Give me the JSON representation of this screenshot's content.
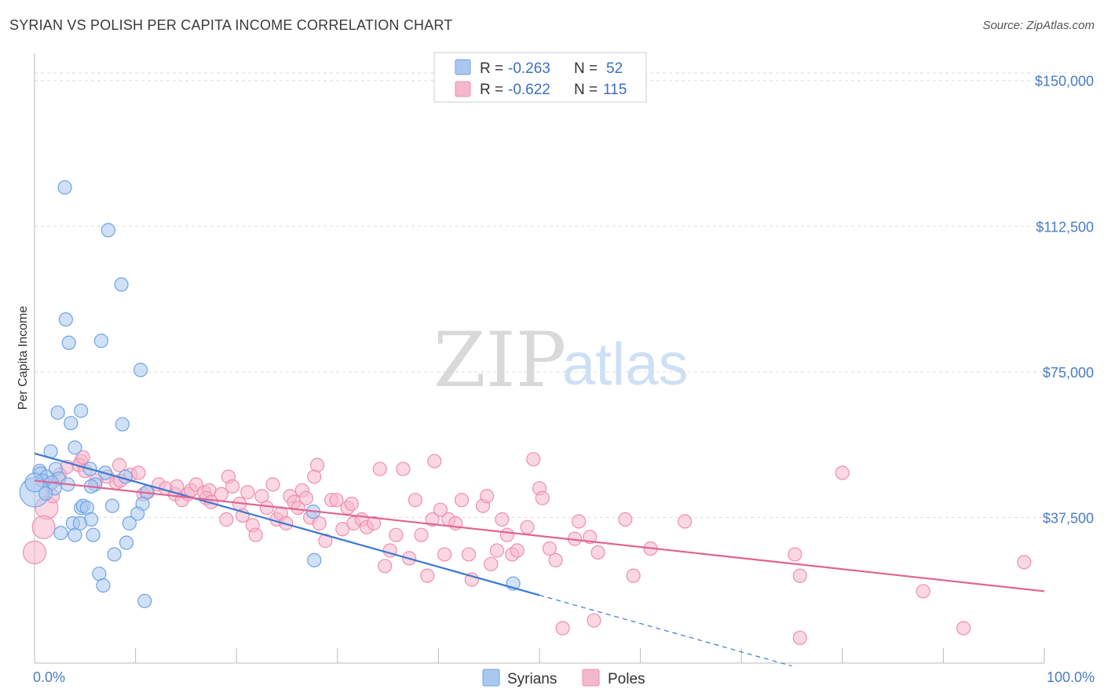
{
  "title": "SYRIAN VS POLISH PER CAPITA INCOME CORRELATION CHART",
  "source": "Source: ZipAtlas.com",
  "watermark": {
    "zip": "ZIP",
    "atlas": "atlas"
  },
  "legend": {
    "rows": [
      {
        "r_label": "R = ",
        "r_value": "-0.263",
        "n_label": "N = ",
        "n_value": "52",
        "color": "#a9c8ef"
      },
      {
        "r_label": "R = ",
        "r_value": "-0.622",
        "n_label": "N = ",
        "n_value": "115",
        "color": "#f5b7cb"
      }
    ]
  },
  "bottom_legend": [
    {
      "label": "Syrians",
      "color": "#a9c8ef"
    },
    {
      "label": "Poles",
      "color": "#f5b7cb"
    }
  ],
  "chart_data": {
    "type": "scatter",
    "title": "SYRIAN VS POLISH PER CAPITA INCOME CORRELATION CHART",
    "xlabel": "",
    "ylabel": "Per Capita Income",
    "xlim": [
      0,
      100
    ],
    "ylim": [
      0,
      155000
    ],
    "y_ticks": [
      {
        "value": 37500,
        "label": "$37,500"
      },
      {
        "value": 75000,
        "label": "$75,000"
      },
      {
        "value": 112500,
        "label": "$112,500"
      },
      {
        "value": 150000,
        "label": "$150,000"
      }
    ],
    "x_tick_labels": [
      {
        "value": 0,
        "label": "0.0%"
      },
      {
        "value": 100,
        "label": "100.0%"
      }
    ],
    "x_minor_ticks": [
      0,
      10,
      20,
      30,
      40,
      50,
      60,
      70,
      80,
      90,
      100
    ],
    "series": [
      {
        "name": "Syrians",
        "color": "#6fa3e6",
        "fill": "#a9c8ef",
        "line_color": "#3a78d4",
        "trend": {
          "x0": 0,
          "y0": 54000,
          "x1": 50,
          "y1": 17500,
          "dash_to_x": 75
        },
        "points": [
          [
            3.0,
            122500
          ],
          [
            7.3,
            111500
          ],
          [
            8.6,
            97500
          ],
          [
            3.1,
            88500
          ],
          [
            3.4,
            82500
          ],
          [
            6.6,
            83000
          ],
          [
            10.5,
            75500
          ],
          [
            2.3,
            64500
          ],
          [
            4.6,
            65000
          ],
          [
            8.7,
            61500
          ],
          [
            3.6,
            61800
          ],
          [
            4.0,
            55500
          ],
          [
            1.6,
            54500
          ],
          [
            0.5,
            49500
          ],
          [
            2.1,
            50000
          ],
          [
            5.5,
            50000
          ],
          [
            7.0,
            49000
          ],
          [
            0.6,
            48800
          ],
          [
            1.2,
            48000
          ],
          [
            2.4,
            47500
          ],
          [
            0.8,
            47000
          ],
          [
            1.7,
            46500
          ],
          [
            3.3,
            46000
          ],
          [
            6.0,
            46000
          ],
          [
            2.0,
            45000
          ],
          [
            5.6,
            45500
          ],
          [
            9.0,
            48000
          ],
          [
            0.0,
            44000
          ],
          [
            1.1,
            43700
          ],
          [
            11.1,
            44000
          ],
          [
            27.6,
            39000
          ],
          [
            4.6,
            40000
          ],
          [
            4.8,
            40500
          ],
          [
            5.2,
            40000
          ],
          [
            7.7,
            40500
          ],
          [
            10.7,
            41000
          ],
          [
            10.2,
            38500
          ],
          [
            5.6,
            37000
          ],
          [
            3.8,
            36000
          ],
          [
            4.5,
            36000
          ],
          [
            9.4,
            36000
          ],
          [
            2.6,
            33500
          ],
          [
            4.0,
            33000
          ],
          [
            5.8,
            33000
          ],
          [
            9.1,
            31000
          ],
          [
            7.9,
            28000
          ],
          [
            27.7,
            26500
          ],
          [
            6.4,
            23000
          ],
          [
            6.8,
            20000
          ],
          [
            47.4,
            20500
          ],
          [
            10.9,
            16000
          ],
          [
            0.0,
            46500
          ]
        ],
        "sizes": {
          "0": 1,
          "27": 2.2,
          "51": 1.4
        }
      },
      {
        "name": "Poles",
        "color": "#ef8fb0",
        "fill": "#f5b7cb",
        "line_color": "#e0648f",
        "trend": {
          "x0": 0,
          "y0": 47000,
          "x1": 100,
          "y1": 18500
        },
        "points": [
          [
            0.0,
            28500
          ],
          [
            1.2,
            40000
          ],
          [
            0.9,
            35000
          ],
          [
            1.8,
            43000
          ],
          [
            1.5,
            46000
          ],
          [
            2.5,
            48500
          ],
          [
            3.2,
            50500
          ],
          [
            4.6,
            52000
          ],
          [
            4.4,
            51000
          ],
          [
            6.1,
            47000
          ],
          [
            4.8,
            53000
          ],
          [
            5.0,
            49500
          ],
          [
            7.2,
            48000
          ],
          [
            8.1,
            46500
          ],
          [
            8.5,
            47000
          ],
          [
            8.4,
            51000
          ],
          [
            9.5,
            48500
          ],
          [
            10.3,
            49000
          ],
          [
            10.8,
            43500
          ],
          [
            11.2,
            44000
          ],
          [
            12.3,
            46000
          ],
          [
            13.0,
            45000
          ],
          [
            13.9,
            43500
          ],
          [
            14.1,
            45500
          ],
          [
            14.6,
            42000
          ],
          [
            15.2,
            43500
          ],
          [
            15.5,
            44500
          ],
          [
            16.0,
            46000
          ],
          [
            16.8,
            44000
          ],
          [
            17.3,
            44500
          ],
          [
            17.0,
            42500
          ],
          [
            17.5,
            41500
          ],
          [
            18.5,
            43500
          ],
          [
            19.0,
            37000
          ],
          [
            19.2,
            48000
          ],
          [
            19.6,
            45500
          ],
          [
            20.3,
            41000
          ],
          [
            20.6,
            38000
          ],
          [
            21.1,
            44000
          ],
          [
            21.6,
            35500
          ],
          [
            21.9,
            33000
          ],
          [
            22.5,
            43000
          ],
          [
            23.0,
            40000
          ],
          [
            23.6,
            46000
          ],
          [
            24.0,
            37000
          ],
          [
            24.4,
            38500
          ],
          [
            24.9,
            36000
          ],
          [
            25.3,
            43000
          ],
          [
            25.7,
            41500
          ],
          [
            26.1,
            40000
          ],
          [
            26.5,
            44500
          ],
          [
            26.9,
            42500
          ],
          [
            27.3,
            37500
          ],
          [
            27.7,
            48000
          ],
          [
            28.0,
            51000
          ],
          [
            28.2,
            36000
          ],
          [
            28.8,
            31500
          ],
          [
            29.4,
            42000
          ],
          [
            29.9,
            42000
          ],
          [
            30.5,
            34500
          ],
          [
            31.0,
            40000
          ],
          [
            31.4,
            41000
          ],
          [
            31.6,
            36000
          ],
          [
            32.4,
            37000
          ],
          [
            32.9,
            35000
          ],
          [
            33.6,
            36000
          ],
          [
            34.2,
            50000
          ],
          [
            34.7,
            25000
          ],
          [
            35.2,
            29000
          ],
          [
            35.8,
            33000
          ],
          [
            36.5,
            50000
          ],
          [
            37.1,
            27000
          ],
          [
            37.7,
            42000
          ],
          [
            38.3,
            33000
          ],
          [
            38.9,
            22500
          ],
          [
            39.4,
            37000
          ],
          [
            39.6,
            52000
          ],
          [
            40.2,
            39500
          ],
          [
            40.6,
            28000
          ],
          [
            41.0,
            37000
          ],
          [
            41.7,
            36000
          ],
          [
            42.3,
            42000
          ],
          [
            43.0,
            28000
          ],
          [
            43.3,
            21500
          ],
          [
            44.4,
            40500
          ],
          [
            44.8,
            43000
          ],
          [
            45.2,
            25500
          ],
          [
            45.8,
            29000
          ],
          [
            46.3,
            37000
          ],
          [
            46.8,
            33000
          ],
          [
            47.3,
            28000
          ],
          [
            47.8,
            29000
          ],
          [
            48.8,
            35000
          ],
          [
            49.4,
            52500
          ],
          [
            50.0,
            45000
          ],
          [
            50.3,
            42500
          ],
          [
            51.0,
            29500
          ],
          [
            51.6,
            26500
          ],
          [
            52.3,
            9000
          ],
          [
            53.5,
            32000
          ],
          [
            53.9,
            36500
          ],
          [
            55.0,
            32500
          ],
          [
            55.4,
            11000
          ],
          [
            55.8,
            28500
          ],
          [
            58.5,
            37000
          ],
          [
            59.3,
            22500
          ],
          [
            61.0,
            29500
          ],
          [
            64.4,
            36500
          ],
          [
            75.3,
            28000
          ],
          [
            75.8,
            22500
          ],
          [
            75.8,
            6500
          ],
          [
            80.0,
            49000
          ],
          [
            88.0,
            18500
          ],
          [
            92.0,
            9000
          ],
          [
            98.0,
            26000
          ]
        ],
        "sizes": {
          "0": 1.7,
          "1": 1.7,
          "2": 1.7
        }
      }
    ]
  }
}
